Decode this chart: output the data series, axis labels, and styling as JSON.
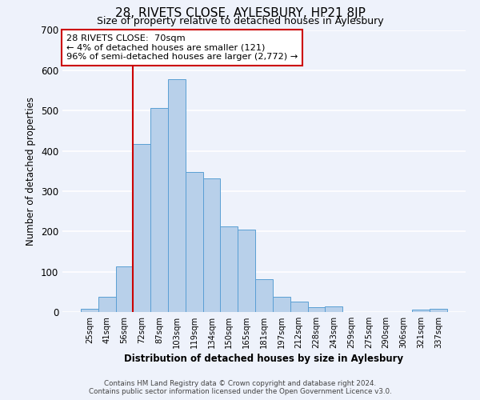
{
  "title": "28, RIVETS CLOSE, AYLESBURY, HP21 8JP",
  "subtitle": "Size of property relative to detached houses in Aylesbury",
  "xlabel": "Distribution of detached houses by size in Aylesbury",
  "ylabel": "Number of detached properties",
  "bar_labels": [
    "25sqm",
    "41sqm",
    "56sqm",
    "72sqm",
    "87sqm",
    "103sqm",
    "119sqm",
    "134sqm",
    "150sqm",
    "165sqm",
    "181sqm",
    "197sqm",
    "212sqm",
    "228sqm",
    "243sqm",
    "259sqm",
    "275sqm",
    "290sqm",
    "306sqm",
    "321sqm",
    "337sqm"
  ],
  "bar_values": [
    8,
    37,
    113,
    417,
    507,
    578,
    347,
    332,
    213,
    204,
    82,
    38,
    25,
    12,
    13,
    0,
    0,
    0,
    0,
    5,
    7
  ],
  "bar_color": "#b8d0ea",
  "bar_edge_color": "#5a9fd4",
  "ylim": [
    0,
    700
  ],
  "yticks": [
    0,
    100,
    200,
    300,
    400,
    500,
    600,
    700
  ],
  "property_line_color": "#cc0000",
  "property_line_idx": 3,
  "annotation_title": "28 RIVETS CLOSE:  70sqm",
  "annotation_line1": "← 4% of detached houses are smaller (121)",
  "annotation_line2": "96% of semi-detached houses are larger (2,772) →",
  "annotation_box_color": "#ffffff",
  "annotation_box_edge": "#cc0000",
  "footnote1": "Contains HM Land Registry data © Crown copyright and database right 2024.",
  "footnote2": "Contains public sector information licensed under the Open Government Licence v3.0.",
  "bg_color": "#eef2fb",
  "grid_color": "#ffffff"
}
